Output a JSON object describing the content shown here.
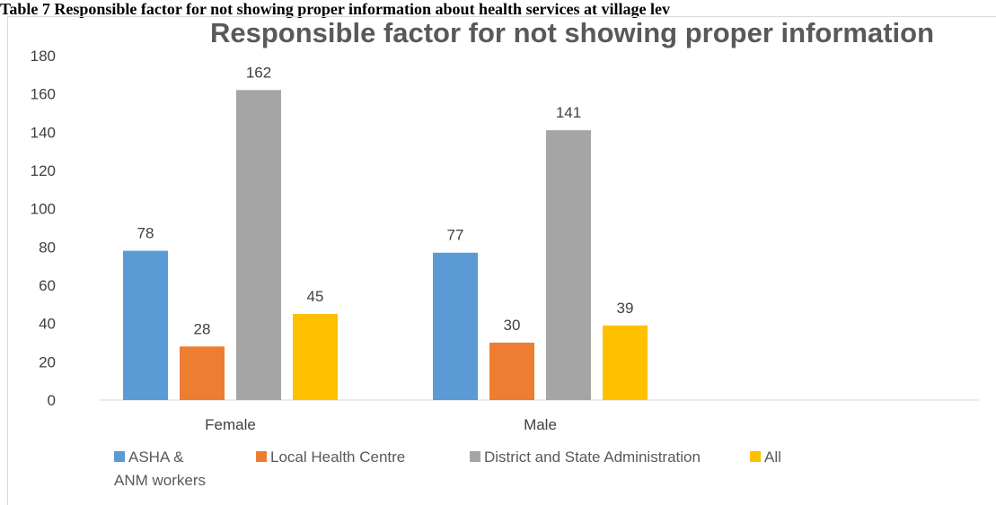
{
  "caption": "Table 7 Responsible factor for not showing proper information about health services at village lev",
  "chart_data": {
    "type": "bar",
    "title": "Responsible factor for not showing proper information",
    "categories": [
      "Female",
      "Male"
    ],
    "series": [
      {
        "name": "ASHA & ANM workers",
        "legend_lines": [
          "ASHA &",
          "ANM workers"
        ],
        "values": [
          78,
          77
        ],
        "color": "#5b9bd5"
      },
      {
        "name": "Local Health Centre",
        "legend_lines": [
          "Local Health Centre"
        ],
        "values": [
          28,
          30
        ],
        "color": "#ed7d31"
      },
      {
        "name": "District and State Administration",
        "legend_lines": [
          "District and State Administration"
        ],
        "values": [
          162,
          141
        ],
        "color": "#a5a5a5"
      },
      {
        "name": "All",
        "legend_lines": [
          "All"
        ],
        "values": [
          45,
          39
        ],
        "color": "#ffc000"
      }
    ],
    "yticks": [
      0,
      20,
      40,
      60,
      80,
      100,
      120,
      140,
      160,
      180
    ],
    "ylim": [
      0,
      180
    ],
    "xlabel": "",
    "ylabel": "",
    "grid": false,
    "legend_position": "bottom"
  }
}
